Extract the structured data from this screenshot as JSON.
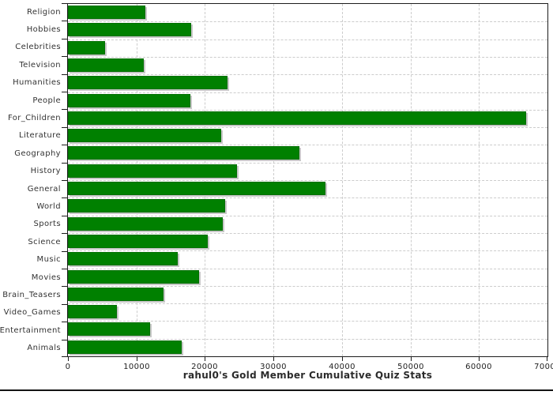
{
  "chart_data": {
    "type": "bar",
    "orientation": "horizontal",
    "title": "rahul0's Gold Member Cumulative Quiz Stats",
    "categories": [
      "Religion",
      "Hobbies",
      "Celebrities",
      "Television",
      "Humanities",
      "People",
      "For_Children",
      "Literature",
      "Geography",
      "History",
      "General",
      "World",
      "Sports",
      "Science",
      "Music",
      "Movies",
      "Brain_Teasers",
      "Video_Games",
      "Entertainment",
      "Animals"
    ],
    "values": [
      11300,
      18000,
      5400,
      11100,
      23300,
      17900,
      66900,
      22400,
      33800,
      24700,
      37600,
      22900,
      22600,
      20400,
      16000,
      19200,
      14000,
      7200,
      12000,
      16600
    ],
    "xlim": [
      0,
      70000
    ],
    "x_ticks": [
      0,
      10000,
      20000,
      30000,
      40000,
      50000,
      60000,
      70000
    ],
    "x_tick_labels": [
      "0",
      "10000",
      "20000",
      "30000",
      "40000",
      "50000",
      "60000",
      "70000"
    ],
    "grid": true,
    "legend": false,
    "bar_color": "#008000",
    "bar_shadow_color": "#c8c8c8",
    "grid_color": "#cccccc",
    "frame_color": "#1c1c1c",
    "text_color": "#333333"
  }
}
